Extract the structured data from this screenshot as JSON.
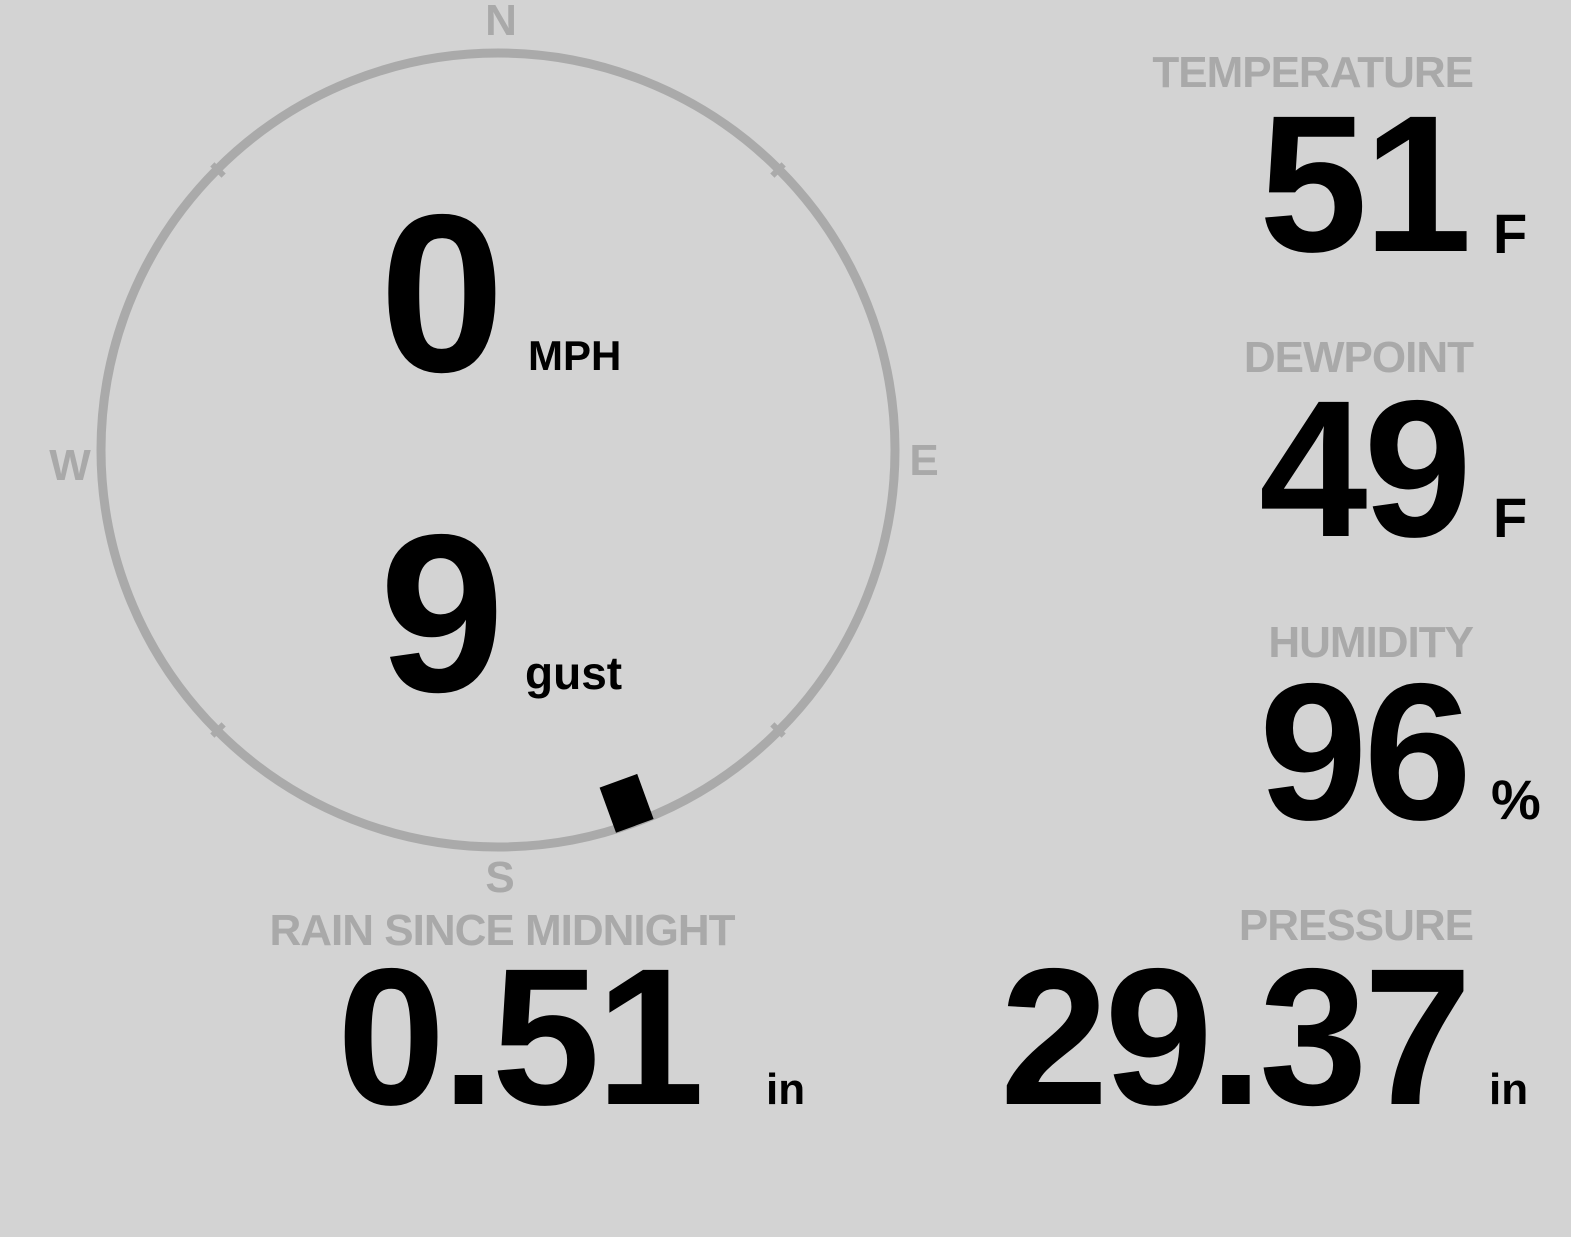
{
  "wind": {
    "speed": "0",
    "speed_unit": "MPH",
    "gust": "9",
    "gust_unit": "gust",
    "direction_deg": 160,
    "compass": {
      "n": "N",
      "e": "E",
      "s": "S",
      "w": "W"
    },
    "ring_color": "#aaaaaa",
    "marker_color": "#000000"
  },
  "temperature": {
    "label": "TEMPERATURE",
    "value": "51",
    "unit": "F"
  },
  "dewpoint": {
    "label": "DEWPOINT",
    "value": "49",
    "unit": "F"
  },
  "humidity": {
    "label": "HUMIDITY",
    "value": "96",
    "unit": "%"
  },
  "pressure": {
    "label": "PRESSURE",
    "value": "29.37",
    "unit": "in"
  },
  "rain": {
    "label": "RAIN SINCE MIDNIGHT",
    "value": "0.51",
    "unit": "in"
  }
}
